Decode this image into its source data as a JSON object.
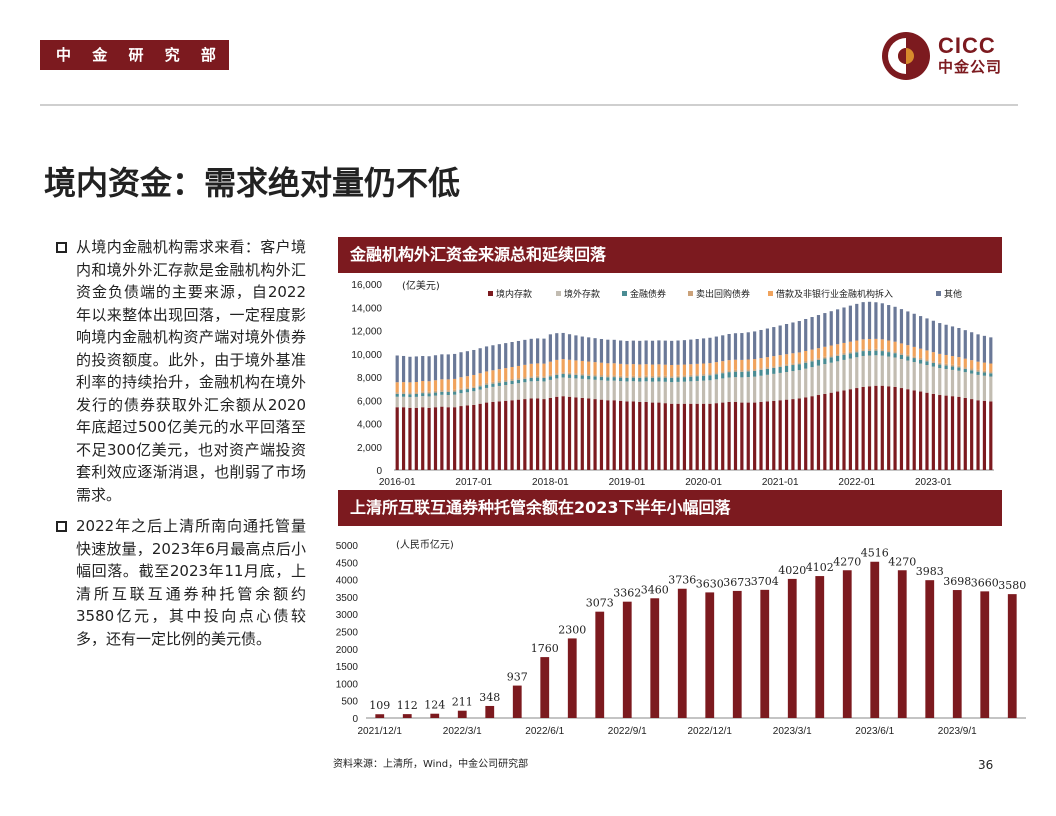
{
  "header": {
    "dept": "中 金 研 究 部",
    "logo_en": "CICC",
    "logo_cn": "中金公司"
  },
  "title": "境内资金：需求绝对量仍不低",
  "bullets": [
    "从境内金融机构需求来看：客户境内和境外外汇存款是金融机构外汇资金负债端的主要来源，自2022年以来整体出现回落，一定程度影响境内金融机构资产端对境外债券的投资额度。此外，由于境外基准利率的持续抬升，金融机构在境外发行的债券获取外汇余额从2020年底超过500亿美元的水平回落至不足300亿美元，也对资产端投资套利效应逐渐消退，也削弱了市场需求。",
    "2022年之后上清所南向通托管量快速放量，2023年6月最高点后小幅回落。截至2023年11月底，上清所互联互通券种托管余额约3580亿元，其中投向点心债较多，还有一定比例的美元债。"
  ],
  "colors": {
    "brand": "#7c1a1f",
    "s1": "#7c1a1f",
    "s2": "#c2bcb1",
    "s3": "#4a8c93",
    "s4": "#cba27a",
    "s5": "#f0a35d",
    "s6": "#6a7897"
  },
  "footer": {
    "source": "资料来源：上清所，Wind，中金公司研究部",
    "page": "36"
  },
  "chart_data": [
    {
      "type": "bar",
      "stacked": true,
      "title": "金融机构外汇资金来源总和延续回落",
      "unit_label": "(亿美元)",
      "ylim": [
        0,
        16000
      ],
      "yticks": [
        "16,000",
        "14,000",
        "12,000",
        "10,000",
        "8,000",
        "6,000",
        "4,000",
        "2,000",
        "0"
      ],
      "xtick_labels": [
        "2016-01",
        "2017-01",
        "2018-01",
        "2019-01",
        "2020-01",
        "2021-01",
        "2022-01",
        "2023-01"
      ],
      "xtick_index": [
        0,
        12,
        24,
        36,
        48,
        60,
        72,
        84
      ],
      "legend": [
        "境内存款",
        "境外存款",
        "金融债券",
        "卖出回购债券",
        "借款及非银行业金融机构拆入",
        "其他"
      ],
      "legend_position": "top",
      "n_months": 94,
      "series": [
        {
          "name": "境内存款",
          "values": [
            5400,
            5400,
            5350,
            5350,
            5400,
            5350,
            5400,
            5450,
            5400,
            5400,
            5500,
            5550,
            5600,
            5700,
            5800,
            5850,
            5900,
            5950,
            6000,
            6050,
            6100,
            6150,
            6150,
            6100,
            6200,
            6300,
            6350,
            6300,
            6250,
            6200,
            6150,
            6100,
            6050,
            6000,
            6000,
            5950,
            5900,
            5900,
            5850,
            5850,
            5800,
            5800,
            5750,
            5700,
            5700,
            5700,
            5700,
            5700,
            5700,
            5700,
            5750,
            5800,
            5850,
            5850,
            5800,
            5800,
            5800,
            5850,
            5900,
            5950,
            6000,
            6050,
            6100,
            6150,
            6250,
            6350,
            6450,
            6550,
            6650,
            6750,
            6850,
            6950,
            7050,
            7150,
            7200,
            7250,
            7250,
            7200,
            7150,
            7050,
            6950,
            6850,
            6750,
            6650,
            6550,
            6450,
            6400,
            6350,
            6300,
            6200,
            6100,
            6000,
            5950,
            5900
          ]
        },
        {
          "name": "境外存款",
          "values": [
            900,
            900,
            920,
            940,
            960,
            980,
            1000,
            1020,
            1050,
            1080,
            1110,
            1140,
            1180,
            1220,
            1260,
            1300,
            1330,
            1360,
            1390,
            1420,
            1450,
            1480,
            1500,
            1520,
            1550,
            1580,
            1610,
            1620,
            1630,
            1640,
            1650,
            1660,
            1670,
            1680,
            1690,
            1700,
            1720,
            1740,
            1760,
            1780,
            1800,
            1820,
            1840,
            1860,
            1880,
            1900,
            1930,
            1960,
            1990,
            2020,
            2050,
            2080,
            2110,
            2140,
            2170,
            2200,
            2230,
            2260,
            2290,
            2320,
            2350,
            2380,
            2410,
            2440,
            2470,
            2500,
            2530,
            2560,
            2580,
            2600,
            2620,
            2640,
            2650,
            2660,
            2650,
            2620,
            2590,
            2560,
            2530,
            2500,
            2470,
            2440,
            2410,
            2380,
            2350,
            2320,
            2290,
            2260,
            2240,
            2220,
            2200,
            2180,
            2160,
            2140
          ]
        },
        {
          "name": "金融债券",
          "values": [
            250,
            250,
            250,
            250,
            255,
            255,
            260,
            260,
            265,
            265,
            270,
            270,
            275,
            275,
            280,
            280,
            285,
            285,
            290,
            290,
            295,
            295,
            300,
            300,
            300,
            300,
            300,
            300,
            300,
            300,
            300,
            300,
            300,
            300,
            300,
            300,
            300,
            310,
            320,
            330,
            340,
            350,
            360,
            370,
            380,
            390,
            400,
            410,
            420,
            430,
            440,
            450,
            460,
            470,
            480,
            490,
            500,
            505,
            510,
            515,
            520,
            520,
            520,
            515,
            510,
            500,
            490,
            480,
            470,
            460,
            450,
            440,
            430,
            420,
            410,
            400,
            390,
            380,
            370,
            360,
            350,
            340,
            330,
            320,
            310,
            300,
            295,
            290,
            285,
            280,
            280,
            280,
            280,
            280
          ]
        },
        {
          "name": "卖出回购债券",
          "values": [
            150,
            150,
            150,
            150,
            150,
            150,
            150,
            150,
            150,
            150,
            150,
            150,
            150,
            150,
            150,
            150,
            150,
            150,
            150,
            150,
            150,
            150,
            150,
            150,
            150,
            150,
            150,
            150,
            150,
            150,
            150,
            150,
            150,
            150,
            150,
            150,
            150,
            150,
            150,
            150,
            150,
            150,
            150,
            150,
            150,
            150,
            150,
            150,
            150,
            150,
            150,
            150,
            150,
            150,
            150,
            150,
            150,
            150,
            150,
            150,
            150,
            150,
            150,
            150,
            150,
            150,
            150,
            150,
            150,
            150,
            150,
            150,
            150,
            150,
            150,
            150,
            150,
            150,
            150,
            150,
            150,
            150,
            150,
            150,
            150,
            150,
            150,
            150,
            150,
            150,
            150,
            150,
            150,
            150
          ]
        },
        {
          "name": "借款及非银行业金融机构拆入",
          "values": [
            850,
            860,
            870,
            880,
            890,
            900,
            910,
            920,
            930,
            940,
            950,
            960,
            970,
            980,
            990,
            1000,
            1010,
            1020,
            1030,
            1040,
            1050,
            1060,
            1070,
            1080,
            1120,
            1140,
            1130,
            1110,
            1100,
            1090,
            1080,
            1070,
            1060,
            1050,
            1040,
            1030,
            1020,
            1010,
            1000,
            990,
            980,
            970,
            960,
            950,
            940,
            930,
            920,
            910,
            900,
            895,
            890,
            885,
            880,
            875,
            870,
            865,
            860,
            860,
            860,
            860,
            860,
            860,
            860,
            860,
            860,
            860,
            860,
            860,
            860,
            860,
            860,
            860,
            860,
            860,
            860,
            860,
            860,
            850,
            840,
            830,
            820,
            810,
            800,
            790,
            780,
            770,
            760,
            750,
            740,
            730,
            720,
            710,
            700,
            690
          ]
        },
        {
          "name": "其他",
          "values": [
            2300,
            2250,
            2200,
            2200,
            2150,
            2150,
            2150,
            2150,
            2150,
            2150,
            2150,
            2150,
            2150,
            2150,
            2150,
            2150,
            2150,
            2150,
            2150,
            2150,
            2150,
            2150,
            2150,
            2150,
            2350,
            2300,
            2250,
            2200,
            2150,
            2100,
            2080,
            2060,
            2040,
            2030,
            2020,
            2010,
            2010,
            2020,
            2030,
            2040,
            2050,
            2060,
            2070,
            2080,
            2090,
            2100,
            2120,
            2140,
            2160,
            2180,
            2200,
            2220,
            2250,
            2280,
            2310,
            2340,
            2380,
            2420,
            2460,
            2500,
            2550,
            2600,
            2650,
            2700,
            2750,
            2800,
            2850,
            2900,
            2950,
            3000,
            3050,
            3100,
            3150,
            3200,
            3200,
            3150,
            3100,
            3050,
            3000,
            2950,
            2900,
            2850,
            2800,
            2750,
            2700,
            2650,
            2600,
            2550,
            2500,
            2450,
            2400,
            2350,
            2300,
            2250
          ]
        }
      ]
    },
    {
      "type": "bar",
      "title": "上清所互联互通券种托管余额在2023下半年小幅回落",
      "unit_label": "(人民币亿元)",
      "ylim": [
        0,
        5000
      ],
      "yticks": [
        "5000",
        "4500",
        "4000",
        "3500",
        "3000",
        "2500",
        "2000",
        "1500",
        "1000",
        "500",
        "0"
      ],
      "xtick_labels": [
        "2021/12/1",
        "2022/3/1",
        "2022/6/1",
        "2022/9/1",
        "2022/12/1",
        "2023/3/1",
        "2023/6/1",
        "2023/9/1"
      ],
      "xtick_index": [
        0,
        3,
        6,
        9,
        12,
        15,
        18,
        21
      ],
      "values": [
        109,
        112,
        124,
        211,
        348,
        937,
        1760,
        2300,
        3073,
        3362,
        3460,
        3736,
        3630,
        3673,
        3704,
        4020,
        4102,
        4270,
        4516,
        4270,
        3983,
        3698,
        3660,
        3580
      ],
      "labels": [
        "109",
        "112",
        "124",
        "211",
        "348",
        "937",
        "1760",
        "2300",
        "3073",
        "3362",
        "3460",
        "3736",
        "3630",
        "3673",
        "3704",
        "4020",
        "4102",
        "4270",
        "4516",
        "4270",
        "3983",
        "3698",
        "3660",
        "3580"
      ]
    }
  ]
}
